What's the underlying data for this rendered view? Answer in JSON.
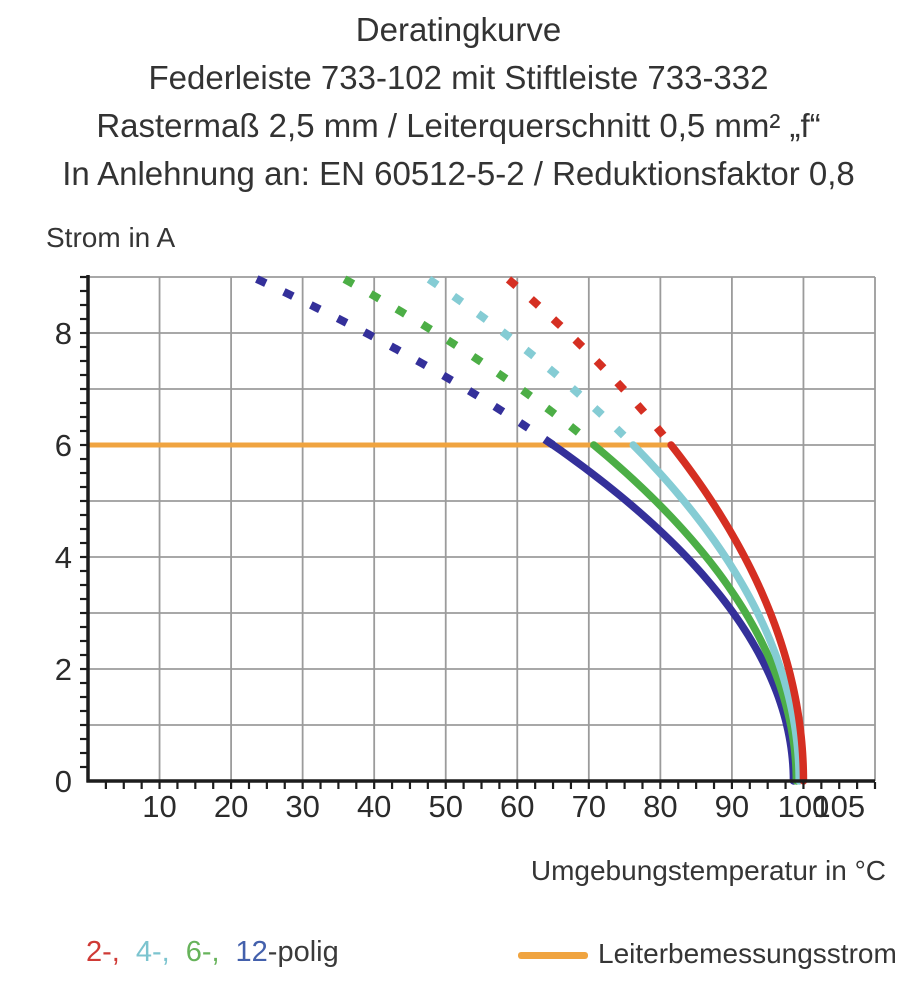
{
  "header": {
    "line1": "Deratingkurve",
    "line2": "Federleiste 733-102 mit Stiftleiste 733-332",
    "line3": "Rastermaß 2,5 mm / Leiterquerschnitt 0,5 mm² „f“",
    "line4": "In Anlehnung an: EN 60512-5-2 / Reduktionsfaktor 0,8"
  },
  "chart_data": {
    "type": "line",
    "title": "Deratingkurve",
    "xlabel": "Umgebungstemperatur in °C",
    "ylabel": "Strom in A",
    "xlim": [
      0,
      110
    ],
    "ylim": [
      0,
      9
    ],
    "x_ticks": [
      10,
      20,
      30,
      40,
      50,
      60,
      70,
      80,
      90,
      100,
      105
    ],
    "y_ticks": [
      0,
      2,
      4,
      6,
      8
    ],
    "x_minor_tick_step": 2.5,
    "y_minor_tick_step": 0.25,
    "grid": true,
    "grid_x_step": 10,
    "grid_y_step": 1,
    "rated_line": {
      "label": "Leiterbemessungsstrom",
      "value_A": 6,
      "from_C": 0,
      "to_C": 81.5,
      "color": "#f0a440"
    },
    "dashed_above_A": 6,
    "model": "I(T) = 6 · sqrt((T0 − T) / (T0 − T6)); dashed where I > 6 A",
    "series": [
      {
        "name": "2-polig",
        "color": "#d52f22",
        "t_at_6A_C": 81.5,
        "t_at_0A_C": 100.0,
        "points_T_I": [
          [
            60,
            8.8
          ],
          [
            70,
            7.6
          ],
          [
            75,
            7.0
          ],
          [
            81.5,
            6.0
          ],
          [
            85,
            5.4
          ],
          [
            90,
            4.4
          ],
          [
            95,
            3.1
          ],
          [
            100,
            0
          ]
        ]
      },
      {
        "name": "4-polig",
        "color": "#85ccd4",
        "t_at_6A_C": 76.2,
        "t_at_0A_C": 99.4,
        "points_T_I": [
          [
            50,
            8.8
          ],
          [
            60,
            7.8
          ],
          [
            70,
            6.8
          ],
          [
            76.2,
            6.0
          ],
          [
            80,
            5.5
          ],
          [
            90,
            3.8
          ],
          [
            95,
            2.6
          ],
          [
            99.4,
            0
          ]
        ]
      },
      {
        "name": "6-polig",
        "color": "#4cae46",
        "t_at_6A_C": 70.7,
        "t_at_0A_C": 99.0,
        "points_T_I": [
          [
            40,
            8.7
          ],
          [
            50,
            7.9
          ],
          [
            60,
            7.0
          ],
          [
            70.7,
            6.0
          ],
          [
            80,
            4.9
          ],
          [
            90,
            3.4
          ],
          [
            95,
            2.3
          ],
          [
            99,
            0
          ]
        ]
      },
      {
        "name": "12-polig",
        "color": "#34309a",
        "t_at_6A_C": 65.0,
        "t_at_0A_C": 98.6,
        "points_T_I": [
          [
            25,
            8.9
          ],
          [
            40,
            7.9
          ],
          [
            50,
            7.2
          ],
          [
            60,
            6.4
          ],
          [
            65,
            6.0
          ],
          [
            80,
            4.5
          ],
          [
            90,
            3.0
          ],
          [
            95,
            2.0
          ],
          [
            98.6,
            0
          ]
        ]
      }
    ]
  },
  "axis_labels": {
    "x": "Umgebungstemperatur in °C",
    "y": "Strom in A"
  },
  "legend": {
    "pole_items": [
      {
        "label": "2-,",
        "color": "#cf3a35"
      },
      {
        "label": "4-,",
        "color": "#7cc4cf"
      },
      {
        "label": "6-,",
        "color": "#67b35b"
      },
      {
        "label": "12",
        "color": "#4360ac"
      }
    ],
    "pole_suffix": "-polig",
    "rated_label": "Leiterbemessungsstrom",
    "rated_color": "#f0a440"
  }
}
